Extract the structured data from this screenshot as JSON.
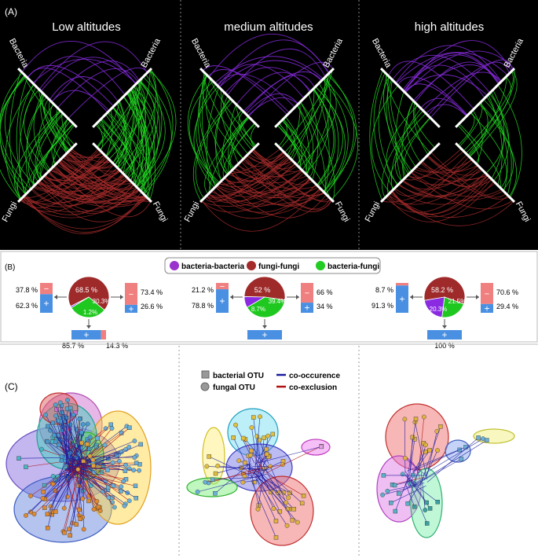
{
  "panel_labels": {
    "a": "(A)",
    "b": "(B)",
    "c": "(C)"
  },
  "altitudes": [
    "Low altitudes",
    "medium altitudes",
    "high altitudes"
  ],
  "hive_axes": {
    "bacteria": "Bacteria",
    "fungi": "Fungi"
  },
  "colors": {
    "bb": "#8a2be2",
    "ff": "#a52a2a",
    "bf": "#22dd22",
    "neg": "#f08080",
    "pos": "#4a90e2",
    "co": "#1a1a9e",
    "ex": "#b01010"
  },
  "legend_b": [
    {
      "label": "bacteria-bacteria",
      "color": "#9932cc"
    },
    {
      "label": "fungi-fungi",
      "color": "#a52a2a"
    },
    {
      "label": "bacteria-fungi",
      "color": "#22cc22"
    }
  ],
  "pies": [
    {
      "ff": "68.5 %",
      "bf": "30.3%",
      "bb": "1.2%",
      "ff_v": 68.5,
      "bf_v": 30.3,
      "bb_v": 1.2,
      "left_neg": "37.8 %",
      "left_pos": "62.3 %",
      "left_neg_v": 37.8,
      "right_neg": "73.4 %",
      "right_pos": "26.6 %",
      "right_neg_v": 73.4,
      "bot_pos": "85.7 %",
      "bot_neg": "14.3 %",
      "bot_pos_v": 85.7
    },
    {
      "ff": "52 %",
      "bf": "39.4%",
      "bb": "8.7%",
      "ff_v": 52,
      "bf_v": 39.4,
      "bb_v": 8.7,
      "left_neg": "21.2 %",
      "left_pos": "78.8 %",
      "left_neg_v": 21.2,
      "right_neg": "66 %",
      "right_pos": "34 %",
      "right_neg_v": 66,
      "bot_pos": "",
      "bot_neg": "",
      "bot_pos_v": 100
    },
    {
      "ff": "58.2 %",
      "bf": "21.5%",
      "bb": "20.3%",
      "ff_v": 58.2,
      "bf_v": 21.5,
      "bb_v": 20.3,
      "left_neg": "8.7 %",
      "left_pos": "91.3 %",
      "left_neg_v": 8.7,
      "right_neg": "70.6 %",
      "right_pos": "29.4 %",
      "right_neg_v": 70.6,
      "bot_pos": "100 %",
      "bot_neg": "",
      "bot_pos_v": 100
    }
  ],
  "legend_c": [
    {
      "label": "bacterial OTU"
    },
    {
      "label": "fungal OTU"
    },
    {
      "label": "co-occurence"
    },
    {
      "label": "co-exclusion"
    }
  ]
}
